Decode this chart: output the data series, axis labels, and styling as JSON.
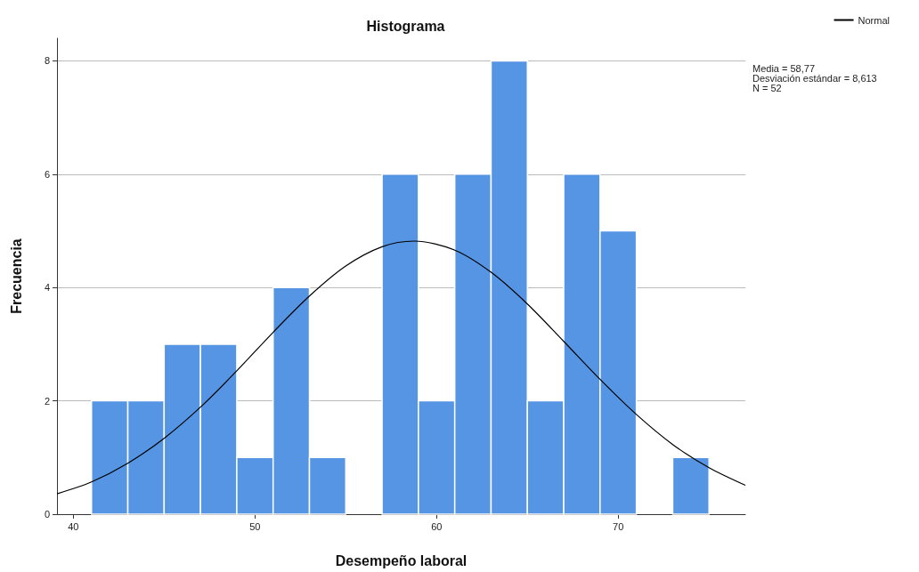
{
  "chart_data": {
    "type": "histogram",
    "title": "Histograma",
    "xlabel": "Desempeño laboral",
    "ylabel": "Frecuencia",
    "bins": [
      41,
      43,
      45,
      47,
      49,
      51,
      53,
      55,
      57,
      59,
      61,
      63,
      65,
      67,
      69,
      71,
      73,
      75
    ],
    "values": [
      2,
      2,
      3,
      3,
      1,
      4,
      1,
      0,
      6,
      2,
      6,
      8,
      2,
      6,
      5,
      0,
      1
    ],
    "color": "#5595e3",
    "series": [
      {
        "type": "line",
        "name": "Normal",
        "color": "#000000",
        "x": [
          39.1,
          41,
          43,
          45,
          47,
          49,
          51,
          53,
          55,
          57,
          58.77,
          61,
          63,
          65,
          67,
          69,
          71,
          73,
          75,
          77
        ],
        "values": [
          0.36,
          0.57,
          0.9,
          1.34,
          1.89,
          2.53,
          3.21,
          3.85,
          4.38,
          4.72,
          4.82,
          4.66,
          4.27,
          3.71,
          3.05,
          2.38,
          1.76,
          1.23,
          0.82,
          0.51
        ]
      }
    ],
    "annotations": [
      "Media = 58,77",
      "Desviación estándar = 8,613",
      "N = 52"
    ],
    "xlim": [
      39.1,
      77
    ],
    "xticks": [
      40,
      50,
      60,
      70
    ],
    "ylim": [
      0,
      8.4
    ],
    "yticks": [
      0,
      2,
      4,
      6,
      8
    ],
    "grid": "y",
    "legend": "top right",
    "marker": "none",
    "line_style": "solid"
  }
}
